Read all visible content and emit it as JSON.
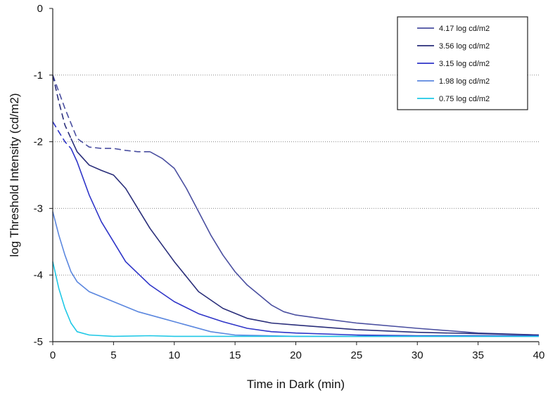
{
  "chart_data": {
    "type": "line",
    "title": "",
    "xlabel": "Time in Dark (min)",
    "ylabel": "log Threshold Intensity (cd/m2)",
    "xlim": [
      0,
      40
    ],
    "ylim": [
      -5,
      0
    ],
    "xticks": [
      0,
      5,
      10,
      15,
      20,
      25,
      30,
      35,
      40
    ],
    "yticks": [
      0,
      -1,
      -2,
      -3,
      -4,
      -5
    ],
    "grid": "horizontal dotted",
    "legend_position": "top-right",
    "series": [
      {
        "name": "4.17 log cd/m2",
        "color": "#4a4fa0",
        "dashed_points": [
          [
            0,
            -1.0
          ],
          [
            1,
            -1.5
          ],
          [
            2,
            -1.95
          ],
          [
            3,
            -2.08
          ],
          [
            4,
            -2.1
          ],
          [
            5,
            -2.1
          ],
          [
            6,
            -2.13
          ],
          [
            7,
            -2.15
          ],
          [
            8,
            -2.15
          ]
        ],
        "points": [
          [
            8,
            -2.15
          ],
          [
            9,
            -2.25
          ],
          [
            10,
            -2.4
          ],
          [
            11,
            -2.7
          ],
          [
            12,
            -3.05
          ],
          [
            13,
            -3.4
          ],
          [
            14,
            -3.7
          ],
          [
            15,
            -3.95
          ],
          [
            16,
            -4.15
          ],
          [
            17,
            -4.3
          ],
          [
            18,
            -4.45
          ],
          [
            19,
            -4.55
          ],
          [
            20,
            -4.6
          ],
          [
            22,
            -4.65
          ],
          [
            25,
            -4.72
          ],
          [
            30,
            -4.8
          ],
          [
            35,
            -4.87
          ],
          [
            40,
            -4.9
          ]
        ]
      },
      {
        "name": "3.56 log cd/m2",
        "color": "#2a2e7a",
        "dashed_points": [
          [
            0,
            -1.0
          ],
          [
            0.5,
            -1.4
          ],
          [
            1,
            -1.75
          ],
          [
            1.5,
            -1.95
          ]
        ],
        "points": [
          [
            1.5,
            -1.95
          ],
          [
            2,
            -2.15
          ],
          [
            3,
            -2.35
          ],
          [
            4,
            -2.43
          ],
          [
            5,
            -2.5
          ],
          [
            6,
            -2.7
          ],
          [
            7,
            -3.0
          ],
          [
            8,
            -3.3
          ],
          [
            10,
            -3.8
          ],
          [
            12,
            -4.25
          ],
          [
            14,
            -4.5
          ],
          [
            16,
            -4.65
          ],
          [
            18,
            -4.72
          ],
          [
            20,
            -4.75
          ],
          [
            25,
            -4.82
          ],
          [
            30,
            -4.86
          ],
          [
            35,
            -4.88
          ],
          [
            40,
            -4.9
          ]
        ]
      },
      {
        "name": "3.15 log cd/m2",
        "color": "#2f35c8",
        "dashed_points": [
          [
            0,
            -1.7
          ],
          [
            0.5,
            -1.85
          ],
          [
            1,
            -2.0
          ],
          [
            1.5,
            -2.1
          ]
        ],
        "points": [
          [
            1.5,
            -2.1
          ],
          [
            2,
            -2.3
          ],
          [
            3,
            -2.8
          ],
          [
            4,
            -3.2
          ],
          [
            5,
            -3.5
          ],
          [
            6,
            -3.8
          ],
          [
            8,
            -4.15
          ],
          [
            10,
            -4.4
          ],
          [
            12,
            -4.58
          ],
          [
            14,
            -4.7
          ],
          [
            16,
            -4.8
          ],
          [
            18,
            -4.85
          ],
          [
            20,
            -4.87
          ],
          [
            25,
            -4.9
          ],
          [
            30,
            -4.91
          ],
          [
            35,
            -4.91
          ],
          [
            40,
            -4.91
          ]
        ]
      },
      {
        "name": "1.98 log cd/m2",
        "color": "#5b87df",
        "points": [
          [
            0,
            -3.05
          ],
          [
            0.5,
            -3.4
          ],
          [
            1,
            -3.7
          ],
          [
            1.5,
            -3.95
          ],
          [
            2,
            -4.1
          ],
          [
            3,
            -4.25
          ],
          [
            5,
            -4.4
          ],
          [
            7,
            -4.55
          ],
          [
            9,
            -4.65
          ],
          [
            11,
            -4.75
          ],
          [
            13,
            -4.85
          ],
          [
            15,
            -4.9
          ],
          [
            20,
            -4.92
          ],
          [
            25,
            -4.92
          ],
          [
            30,
            -4.92
          ],
          [
            35,
            -4.92
          ],
          [
            40,
            -4.92
          ]
        ]
      },
      {
        "name": "0.75 log cd/m2",
        "color": "#1fc8e6",
        "points": [
          [
            0,
            -3.8
          ],
          [
            0.5,
            -4.2
          ],
          [
            1,
            -4.5
          ],
          [
            1.5,
            -4.72
          ],
          [
            2,
            -4.85
          ],
          [
            3,
            -4.9
          ],
          [
            5,
            -4.92
          ],
          [
            8,
            -4.91
          ],
          [
            10,
            -4.92
          ],
          [
            15,
            -4.92
          ],
          [
            20,
            -4.92
          ],
          [
            25,
            -4.92
          ],
          [
            30,
            -4.92
          ],
          [
            35,
            -4.92
          ],
          [
            40,
            -4.92
          ]
        ]
      }
    ]
  }
}
